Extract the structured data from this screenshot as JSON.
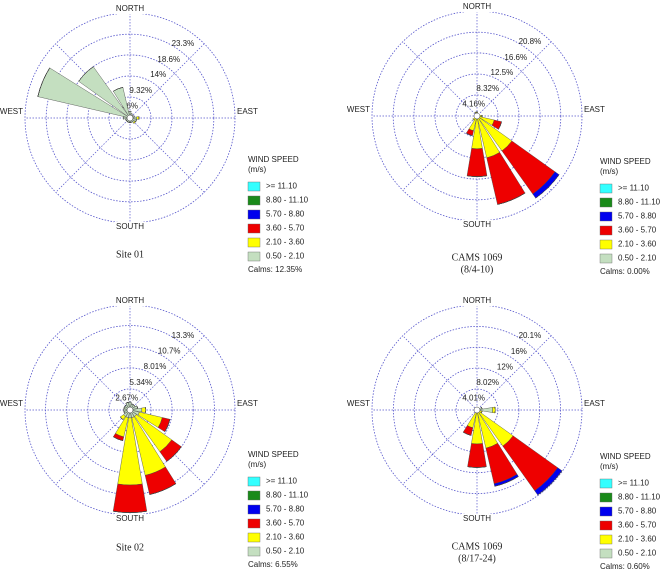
{
  "chart_data": [
    {
      "type": "windrose",
      "caption": [
        "Site 01"
      ],
      "categories": [
        "NORTH",
        null,
        null,
        null,
        "EAST",
        null,
        null,
        null,
        "SOUTH",
        null,
        null,
        null,
        "WEST",
        null,
        null,
        null
      ],
      "rlim": [
        0,
        23.3
      ],
      "rticks": [
        {
          "value": 4.66,
          "label": "4.66%"
        },
        {
          "value": 9.32,
          "label": "9.32%"
        },
        {
          "value": 14,
          "label": "14%"
        },
        {
          "value": 18.6,
          "label": "18.6%"
        },
        {
          "value": 23.3,
          "label": "23.3%"
        }
      ],
      "legend_title": [
        "WIND SPEED",
        "(m/s)"
      ],
      "series": [
        {
          "name": ">= 11.10",
          "color": "#33ffff",
          "values": [
            0,
            0,
            0,
            0,
            0,
            0,
            0,
            0,
            0,
            0,
            0,
            0,
            0,
            0,
            0,
            0
          ]
        },
        {
          "name": "8.80 - 11.10",
          "color": "#1a8a1a",
          "values": [
            0,
            0,
            0,
            0,
            0,
            0,
            0,
            0,
            0,
            0,
            0,
            0,
            0,
            0,
            0,
            0
          ]
        },
        {
          "name": "5.70 - 8.80",
          "color": "#0000ee",
          "values": [
            0,
            0,
            0,
            0,
            0,
            0,
            0,
            0,
            0,
            0,
            0,
            0,
            0,
            0,
            0,
            0
          ]
        },
        {
          "name": "3.60 - 5.70",
          "color": "#ee0000",
          "values": [
            0,
            0,
            0,
            0,
            0,
            0,
            0,
            0,
            0,
            0,
            0,
            0,
            0,
            0,
            0,
            0
          ]
        },
        {
          "name": "2.10 - 3.60",
          "color": "#ffff00",
          "values": [
            0,
            0,
            0,
            0,
            0.5,
            0,
            0.3,
            0,
            0,
            0,
            0,
            0,
            0,
            0,
            0,
            0
          ]
        },
        {
          "name": "0.50 - 2.10",
          "color": "#c4dfc0",
          "values": [
            1.5,
            1,
            0.8,
            1,
            1.5,
            1.5,
            1.2,
            1,
            1,
            1,
            1,
            1,
            1.5,
            21,
            14,
            7
          ]
        }
      ],
      "calms": "Calms: 12.35%"
    },
    {
      "type": "windrose",
      "caption": [
        "CAMS 1069",
        "(8/4-10)"
      ],
      "categories": [
        "NORTH",
        null,
        null,
        null,
        "EAST",
        null,
        null,
        null,
        "SOUTH",
        null,
        null,
        null,
        "WEST",
        null,
        null,
        null
      ],
      "rlim": [
        0,
        20.8
      ],
      "rticks": [
        {
          "value": 4.16,
          "label": "4.16%"
        },
        {
          "value": 8.32,
          "label": "8.32%"
        },
        {
          "value": 12.5,
          "label": "12.5%"
        },
        {
          "value": 16.6,
          "label": "16.6%"
        },
        {
          "value": 20.8,
          "label": "20.8%"
        }
      ],
      "legend_title": [
        "WIND SPEED",
        "(m/s)"
      ],
      "series": [
        {
          "name": ">= 11.10",
          "color": "#33ffff",
          "values": [
            0,
            0,
            0,
            0,
            0,
            0,
            0,
            0,
            0,
            0,
            0,
            0,
            0,
            0,
            0,
            0
          ]
        },
        {
          "name": "8.80 - 11.10",
          "color": "#1a8a1a",
          "values": [
            0,
            0,
            0,
            0,
            0,
            0,
            0,
            0,
            0,
            0,
            0,
            0,
            0,
            0,
            0,
            0
          ]
        },
        {
          "name": "5.70 - 8.80",
          "color": "#0000ee",
          "values": [
            0,
            0,
            0,
            0,
            0,
            0,
            1,
            0,
            0,
            0,
            0,
            0,
            0,
            0,
            0,
            0
          ]
        },
        {
          "name": "3.60 - 5.70",
          "color": "#ee0000",
          "values": [
            0,
            0,
            0,
            0,
            0,
            1.5,
            10.5,
            9.5,
            5.5,
            1,
            0,
            0,
            0,
            0,
            0,
            0
          ]
        },
        {
          "name": "2.10 - 3.60",
          "color": "#ffff00",
          "values": [
            0.3,
            0,
            0,
            0,
            0.5,
            3,
            8,
            8,
            6,
            2.5,
            0.5,
            0,
            0,
            0,
            0,
            0.3
          ]
        },
        {
          "name": "0.50 - 2.10",
          "color": "#c4dfc0",
          "values": [
            0.5,
            0.3,
            0.3,
            0.3,
            0.5,
            0.5,
            0.5,
            0.5,
            0.5,
            0.5,
            0.5,
            0.3,
            0.3,
            0.3,
            0.3,
            0.5
          ]
        }
      ],
      "calms": "Calms: 0.00%"
    },
    {
      "type": "windrose",
      "caption": [
        "Site 02"
      ],
      "categories": [
        "NORTH",
        null,
        null,
        null,
        "EAST",
        null,
        null,
        null,
        "SOUTH",
        null,
        null,
        null,
        "WEST",
        null,
        null,
        null
      ],
      "rlim": [
        0,
        13.3
      ],
      "rticks": [
        {
          "value": 2.67,
          "label": "2.67%"
        },
        {
          "value": 5.34,
          "label": "5.34%"
        },
        {
          "value": 8.01,
          "label": "8.01%"
        },
        {
          "value": 10.7,
          "label": "10.7%"
        },
        {
          "value": 13.3,
          "label": "13.3%"
        }
      ],
      "legend_title": [
        "WIND SPEED",
        "(m/s)"
      ],
      "series": [
        {
          "name": ">= 11.10",
          "color": "#33ffff",
          "values": [
            0,
            0,
            0,
            0,
            0,
            0,
            0,
            0,
            0,
            0,
            0,
            0,
            0,
            0,
            0,
            0
          ]
        },
        {
          "name": "8.80 - 11.10",
          "color": "#1a8a1a",
          "values": [
            0,
            0,
            0,
            0,
            0,
            0,
            0,
            0,
            0,
            0,
            0,
            0,
            0,
            0,
            0,
            0
          ]
        },
        {
          "name": "5.70 - 8.80",
          "color": "#0000ee",
          "values": [
            0,
            0,
            0,
            0,
            0,
            0,
            0,
            0,
            0,
            0,
            0,
            0,
            0,
            0,
            0,
            0
          ]
        },
        {
          "name": "3.60 - 5.70",
          "color": "#ee0000",
          "values": [
            0,
            0,
            0,
            0,
            0,
            1,
            1.5,
            2.5,
            3.5,
            0.5,
            0,
            0,
            0,
            0,
            0,
            0
          ]
        },
        {
          "name": "2.10 - 3.60",
          "color": "#ffff00",
          "values": [
            0,
            0,
            0,
            0,
            0.5,
            3,
            5.5,
            7.5,
            8.5,
            2.5,
            0.5,
            0,
            0,
            0,
            0,
            0
          ]
        },
        {
          "name": "0.50 - 2.10",
          "color": "#c4dfc0",
          "values": [
            1,
            0.8,
            0.8,
            1,
            1.5,
            1.2,
            1,
            1,
            1,
            1,
            1,
            0.8,
            0.8,
            0.8,
            0.8,
            1
          ]
        }
      ],
      "calms": "Calms: 6.55%"
    },
    {
      "type": "windrose",
      "caption": [
        "CAMS 1069",
        "(8/17-24)"
      ],
      "categories": [
        "NORTH",
        null,
        null,
        null,
        "EAST",
        null,
        null,
        null,
        "SOUTH",
        null,
        null,
        null,
        "WEST",
        null,
        null,
        null
      ],
      "rlim": [
        0,
        20.1
      ],
      "rticks": [
        {
          "value": 4.01,
          "label": "4.01%"
        },
        {
          "value": 8.02,
          "label": "8.02%"
        },
        {
          "value": 12,
          "label": "12%"
        },
        {
          "value": 16,
          "label": "16%"
        },
        {
          "value": 20.1,
          "label": "20.1%"
        }
      ],
      "legend_title": [
        "WIND SPEED",
        "(m/s)"
      ],
      "series": [
        {
          "name": ">= 11.10",
          "color": "#33ffff",
          "values": [
            0,
            0,
            0,
            0,
            0,
            0,
            0,
            0,
            0,
            0,
            0,
            0,
            0,
            0,
            0,
            0
          ]
        },
        {
          "name": "8.80 - 11.10",
          "color": "#1a8a1a",
          "values": [
            0,
            0,
            0,
            0,
            0,
            0,
            0,
            0,
            0,
            0,
            0,
            0,
            0,
            0,
            0,
            0
          ]
        },
        {
          "name": "5.70 - 8.80",
          "color": "#0000ee",
          "values": [
            0,
            0,
            0,
            0,
            0,
            0,
            1,
            0.5,
            0,
            0,
            0,
            0,
            0,
            0,
            0,
            0
          ]
        },
        {
          "name": "3.60 - 5.70",
          "color": "#ee0000",
          "values": [
            0,
            0,
            0,
            0,
            0,
            0,
            10.5,
            7,
            4.5,
            1.5,
            0,
            0,
            0,
            0,
            0,
            0
          ]
        },
        {
          "name": "2.10 - 3.60",
          "color": "#ffff00",
          "values": [
            0,
            0,
            0,
            0,
            0.5,
            0.5,
            8,
            7,
            6,
            3,
            0,
            0,
            0,
            0,
            0,
            0
          ]
        },
        {
          "name": "0.50 - 2.10",
          "color": "#c4dfc0",
          "values": [
            0.5,
            0.5,
            0.5,
            1,
            3,
            0.5,
            0.5,
            0.5,
            0.5,
            0.5,
            0.5,
            0.5,
            0.5,
            0.5,
            0.5,
            0.5
          ]
        }
      ],
      "calms": "Calms: 0.60%"
    }
  ]
}
